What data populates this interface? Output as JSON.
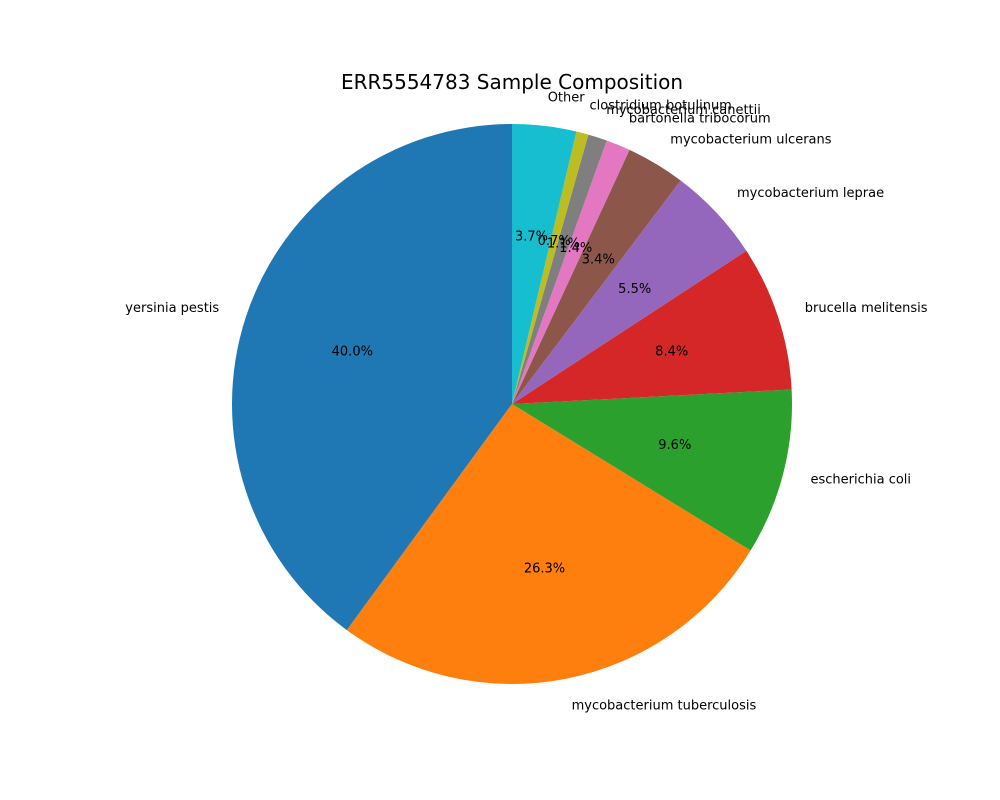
{
  "chart_data": {
    "type": "pie",
    "title": "ERR5554783 Sample Composition",
    "start_angle_deg": 90,
    "direction": "counterclockwise",
    "slices": [
      {
        "label": "yersinia pestis",
        "value": 40.0,
        "pct_text": "40.0%",
        "color": "#1f77b4"
      },
      {
        "label": "mycobacterium tuberculosis",
        "value": 26.3,
        "pct_text": "26.3%",
        "color": "#ff7f0e"
      },
      {
        "label": "escherichia coli",
        "value": 9.6,
        "pct_text": "9.6%",
        "color": "#2ca02c"
      },
      {
        "label": "brucella melitensis",
        "value": 8.4,
        "pct_text": "8.4%",
        "color": "#d62728"
      },
      {
        "label": "mycobacterium leprae",
        "value": 5.5,
        "pct_text": "5.5%",
        "color": "#9467bd"
      },
      {
        "label": "mycobacterium ulcerans",
        "value": 3.4,
        "pct_text": "3.4%",
        "color": "#8c564b"
      },
      {
        "label": "bartonella tribocorum",
        "value": 1.4,
        "pct_text": "1.4%",
        "color": "#e377c2"
      },
      {
        "label": "mycobacterium canettii",
        "value": 1.1,
        "pct_text": "1.1%",
        "color": "#7f7f7f"
      },
      {
        "label": "clostridium botulinum",
        "value": 0.7,
        "pct_text": "0.7%",
        "color": "#bcbd22"
      },
      {
        "label": "Other",
        "value": 3.7,
        "pct_text": "3.7%",
        "color": "#17becf"
      }
    ]
  }
}
